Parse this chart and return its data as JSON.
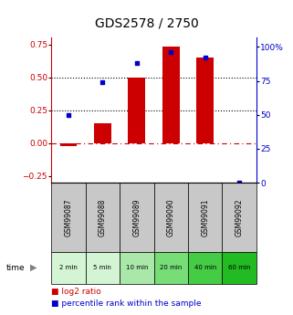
{
  "title": "GDS2578 / 2750",
  "samples": [
    "GSM99087",
    "GSM99088",
    "GSM99089",
    "GSM99090",
    "GSM99091",
    "GSM99092"
  ],
  "time_labels": [
    "2 min",
    "5 min",
    "10 min",
    "20 min",
    "40 min",
    "60 min"
  ],
  "log2_ratio": [
    -0.02,
    0.15,
    0.5,
    0.73,
    0.65,
    0.0
  ],
  "percentile_rank": [
    50,
    74,
    88,
    96,
    92,
    0
  ],
  "left_ylim": [
    -0.3,
    0.8
  ],
  "right_ylim": [
    0,
    106.67
  ],
  "left_yticks": [
    -0.25,
    0,
    0.25,
    0.5,
    0.75
  ],
  "right_yticks": [
    0,
    25,
    50,
    75,
    100
  ],
  "bar_color": "#cc0000",
  "dot_color": "#0000cc",
  "hline_color_dotted": "#000000",
  "hline_color_dashed": "#cc0000",
  "hline_dotted_values": [
    0.25,
    0.5
  ],
  "hline_dashed_value": 0.0,
  "sample_bg_color": "#c8c8c8",
  "time_bg_colors": [
    "#d4f5d4",
    "#d4f5d4",
    "#aae8aa",
    "#77dd77",
    "#44cc44",
    "#22bb22"
  ],
  "legend_items": [
    "log2 ratio",
    "percentile rank within the sample"
  ],
  "legend_colors": [
    "#cc0000",
    "#0000cc"
  ],
  "title_fontsize": 10,
  "tick_fontsize": 6.5,
  "legend_fontsize": 6.5
}
